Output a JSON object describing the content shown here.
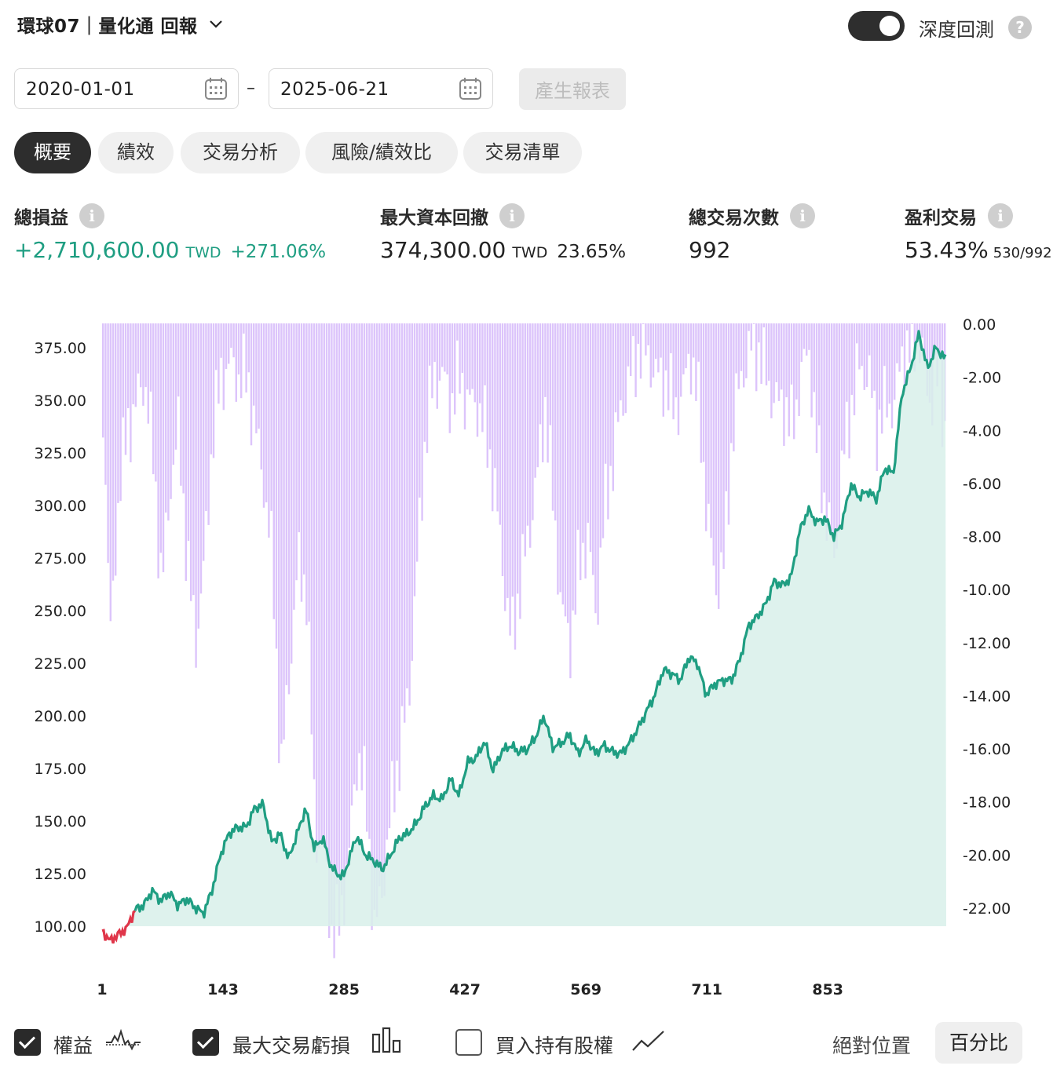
{
  "header": {
    "title": "環球07｜量化通 回報",
    "deep_backtest_label": "深度回測",
    "deep_backtest_on": true,
    "help_glyph": "?"
  },
  "dates": {
    "start": "2020-01-01",
    "end": "2025-06-21",
    "separator": "–",
    "generate_label": "產生報表"
  },
  "tabs": [
    {
      "label": "概要",
      "active": true
    },
    {
      "label": "績效",
      "active": false
    },
    {
      "label": "交易分析",
      "active": false
    },
    {
      "label": "風險/績效比",
      "active": false
    },
    {
      "label": "交易清單",
      "active": false
    }
  ],
  "stats": {
    "total_pnl": {
      "label": "總損益",
      "value": "+2,710,600.00",
      "unit": "TWD",
      "pct": "+271.06%"
    },
    "max_drawdown": {
      "label": "最大資本回撤",
      "value": "374,300.00",
      "unit": "TWD",
      "pct": "23.65%"
    },
    "total_trades": {
      "label": "總交易次數",
      "value": "992"
    },
    "profitable": {
      "label": "盈利交易",
      "value": "53.43%",
      "detail": "530/992"
    },
    "info_glyph": "i"
  },
  "colors": {
    "equity_up": "#1f9e82",
    "equity_down": "#e0364a",
    "equity_fill": "#d8f0ea",
    "drawdown": "#dcc4fb",
    "accent_dark": "#2d2d2d"
  },
  "chart_data": {
    "type": "line",
    "x_ticks": [
      "1",
      "143",
      "285",
      "427",
      "569",
      "711",
      "853"
    ],
    "x_range": [
      1,
      992
    ],
    "left_ticks": [
      "375.00",
      "350.00",
      "325.00",
      "300.00",
      "275.00",
      "250.00",
      "225.00",
      "200.00",
      "175.00",
      "150.00",
      "125.00",
      "100.00"
    ],
    "left_ylim": [
      100,
      375
    ],
    "right_ticks": [
      "0.00",
      "-2.00",
      "-4.00",
      "-6.00",
      "-8.00",
      "-10.00",
      "-12.00",
      "-14.00",
      "-16.00",
      "-18.00",
      "-20.00",
      "-22.00"
    ],
    "right_ylim": [
      -22,
      0
    ],
    "series": [
      {
        "name": "權益",
        "x": [
          1,
          10,
          20,
          30,
          40,
          50,
          60,
          70,
          80,
          90,
          100,
          110,
          120,
          130,
          140,
          150,
          160,
          170,
          180,
          190,
          200,
          210,
          220,
          230,
          240,
          250,
          260,
          270,
          280,
          285,
          290,
          300,
          310,
          320,
          330,
          340,
          350,
          360,
          370,
          380,
          390,
          400,
          410,
          420,
          430,
          440,
          450,
          460,
          470,
          480,
          490,
          500,
          510,
          520,
          530,
          540,
          550,
          560,
          570,
          580,
          590,
          600,
          610,
          620,
          630,
          640,
          650,
          660,
          670,
          680,
          690,
          700,
          710,
          720,
          730,
          740,
          750,
          760,
          770,
          780,
          790,
          800,
          810,
          820,
          830,
          840,
          850,
          860,
          870,
          880,
          890,
          900,
          910,
          920,
          930,
          940,
          950,
          960,
          970,
          980,
          990
        ],
        "values": [
          98,
          93,
          96,
          99,
          108,
          110,
          117,
          112,
          116,
          110,
          113,
          109,
          106,
          117,
          134,
          144,
          147,
          147,
          156,
          158,
          140,
          144,
          132,
          144,
          156,
          137,
          142,
          128,
          124,
          124,
          131,
          143,
          134,
          131,
          127,
          134,
          142,
          144,
          149,
          157,
          162,
          160,
          170,
          162,
          178,
          180,
          188,
          174,
          183,
          186,
          183,
          184,
          190,
          200,
          185,
          187,
          191,
          182,
          189,
          182,
          186,
          183,
          182,
          187,
          194,
          202,
          210,
          222,
          220,
          217,
          228,
          225,
          210,
          215,
          217,
          217,
          227,
          243,
          247,
          253,
          264,
          262,
          266,
          288,
          298,
          292,
          294,
          285,
          292,
          310,
          304,
          307,
          303,
          318,
          315,
          353,
          365,
          382,
          365,
          375,
          370
        ]
      },
      {
        "name": "最大交易虧損",
        "x": [
          1,
          10,
          20,
          30,
          40,
          50,
          60,
          70,
          80,
          90,
          100,
          110,
          120,
          130,
          140,
          150,
          160,
          170,
          180,
          190,
          200,
          210,
          220,
          230,
          240,
          250,
          260,
          270,
          280,
          285,
          290,
          300,
          310,
          320,
          330,
          340,
          350,
          360,
          370,
          380,
          390,
          400,
          410,
          420,
          430,
          440,
          450,
          460,
          470,
          480,
          490,
          500,
          510,
          520,
          530,
          540,
          550,
          560,
          570,
          580,
          590,
          600,
          610,
          620,
          630,
          640,
          650,
          660,
          670,
          680,
          690,
          700,
          710,
          720,
          730,
          740,
          750,
          760,
          770,
          780,
          790,
          800,
          810,
          820,
          830,
          840,
          850,
          860,
          870,
          880,
          890,
          900,
          910,
          920,
          930,
          940,
          950,
          960,
          970,
          980,
          990
        ],
        "values": [
          -3,
          -12,
          -6,
          -4,
          -3,
          -2,
          -5,
          -10,
          -6,
          -4,
          -9,
          -12,
          -9,
          -4,
          -2,
          -1.5,
          -2,
          -2,
          -4,
          -6,
          -9,
          -17,
          -13,
          -9,
          -10,
          -19,
          -20,
          -23,
          -22.5,
          -21,
          -20,
          -16,
          -18,
          -23,
          -21,
          -18,
          -16,
          -14,
          -9,
          -4,
          -2,
          -2,
          -3,
          -2,
          -3,
          -3,
          -4,
          -6,
          -9,
          -12,
          -10,
          -8,
          -6,
          -3,
          -7,
          -11,
          -12,
          -9,
          -8,
          -11,
          -7,
          -5,
          -3,
          -2,
          -1,
          -1,
          -2,
          -2,
          -3,
          -3,
          -1,
          -3,
          -7,
          -10,
          -9,
          -4,
          -2,
          -1,
          -1,
          -2,
          -3,
          -3,
          -4,
          -2,
          -1,
          -5,
          -7,
          -9,
          -5,
          -3,
          -1.5,
          -2,
          -4,
          -3,
          -3,
          -1,
          -1,
          -0.5,
          -3,
          -2,
          -4
        ]
      }
    ],
    "baseline": 100
  },
  "legend": {
    "equity": {
      "label": "權益",
      "checked": true
    },
    "max_trade_loss": {
      "label": "最大交易虧損",
      "checked": true
    },
    "buy_hold": {
      "label": "買入持有股權",
      "checked": false
    },
    "absolute_label": "絕對位置",
    "percent_label": "百分比"
  }
}
